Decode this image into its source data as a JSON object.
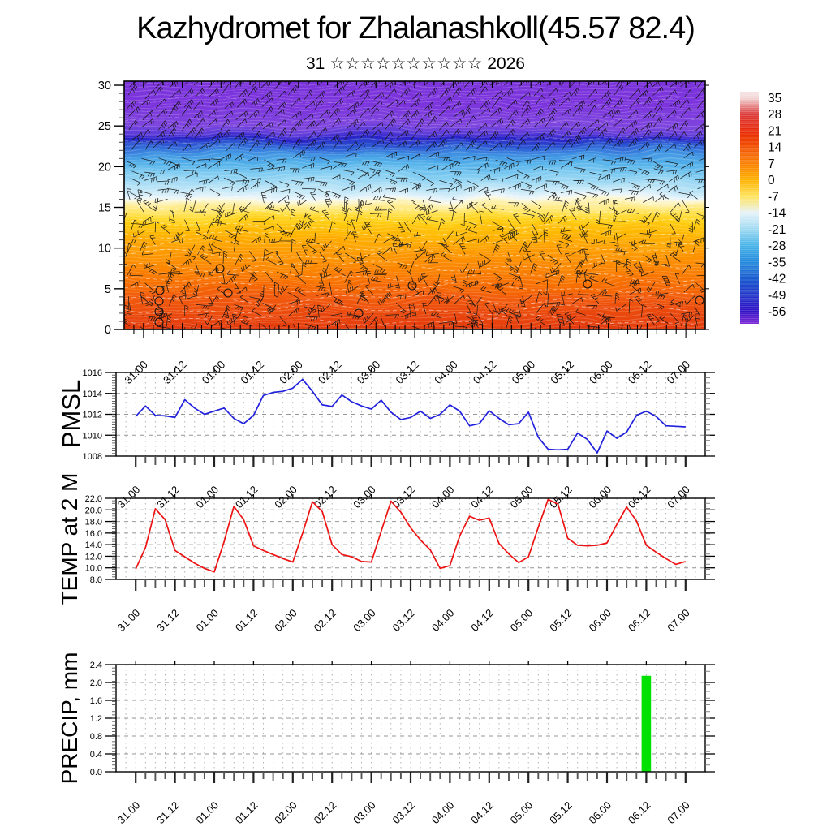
{
  "title": "Kazhydromet for Zhalanashkoll(45.57 82.4)",
  "subtitle": {
    "day": "31",
    "stars": "☆☆☆☆☆☆☆☆☆☆",
    "year": "2026",
    "text": "31 ☆☆☆☆☆☆☆☆☆☆ 2026"
  },
  "time_axis": {
    "tick_labels": [
      "31.00",
      "31.12",
      "01.00",
      "01.12",
      "02.00",
      "02.12",
      "03.00",
      "03.12",
      "04.00",
      "04.12",
      "05.00",
      "05.12",
      "06.00",
      "06.12",
      "07.00"
    ],
    "step_hours": 3,
    "major_step_hours": 12
  },
  "colorbar": {
    "tick_labels": [
      "35",
      "28",
      "21",
      "14",
      "7",
      "0",
      "-7",
      "-14",
      "-21",
      "-28",
      "-35",
      "-42",
      "-49",
      "-56"
    ],
    "colors": [
      "#f3d9d9",
      "#dc3c3c",
      "#e82806",
      "#f25203",
      "#fa7e00",
      "#ffb200",
      "#ffe358",
      "#e8f3f9",
      "#9ed9f2",
      "#49b4e8",
      "#2188dc",
      "#1b5cd0",
      "#1f34c8",
      "#3313c6"
    ],
    "top_color": "#f6e3e3",
    "bottom_color": "#7e2ad6"
  },
  "chart_data": [
    {
      "type": "heatmap",
      "name": "wind-temperature-height-section",
      "ylim": [
        0,
        30.5
      ],
      "yticks": [
        0,
        5,
        10,
        15,
        20,
        25,
        30
      ],
      "ytick_labels": [
        "0",
        "5",
        "10",
        "15",
        "20",
        "25",
        "30"
      ],
      "overlay": "wind barbs",
      "gradient_stops": [
        [
          0.0,
          "#7b31da"
        ],
        [
          0.16,
          "#7c36dc"
        ],
        [
          0.225,
          "#7e46de"
        ],
        [
          0.252,
          "#5b3bd8"
        ],
        [
          0.268,
          "#2a22c8"
        ],
        [
          0.283,
          "#2945cd"
        ],
        [
          0.3,
          "#3166d7"
        ],
        [
          0.325,
          "#3f91e2"
        ],
        [
          0.355,
          "#54b2ea"
        ],
        [
          0.39,
          "#7fcbf1"
        ],
        [
          0.425,
          "#a8ddf5"
        ],
        [
          0.452,
          "#cdebf8"
        ],
        [
          0.468,
          "#e8f4fb"
        ],
        [
          0.479,
          "#f9f8e4"
        ],
        [
          0.492,
          "#fdf2b4"
        ],
        [
          0.512,
          "#ffe97e"
        ],
        [
          0.535,
          "#ffdd3a"
        ],
        [
          0.565,
          "#ffca0b"
        ],
        [
          0.605,
          "#ffb303"
        ],
        [
          0.655,
          "#fe9d02"
        ],
        [
          0.705,
          "#fb8903"
        ],
        [
          0.765,
          "#f87104"
        ],
        [
          0.825,
          "#f15908"
        ],
        [
          0.885,
          "#e9460c"
        ],
        [
          0.945,
          "#e1370c"
        ],
        [
          1.0,
          "#d92d08"
        ]
      ]
    },
    {
      "type": "line",
      "series_name": "PMSL",
      "color": "#2121dd",
      "ylim": [
        1008,
        1016
      ],
      "yticks": [
        1016,
        1014,
        1012,
        1010,
        1008
      ],
      "ytick_labels": [
        "1016",
        "1014",
        "1012",
        "1010",
        "1008"
      ],
      "grid_y": [
        1010,
        1012,
        1014
      ],
      "x_step_hours": 3,
      "values": [
        1011.8,
        1012.8,
        1011.9,
        1011.85,
        1011.7,
        1013.4,
        1012.6,
        1012.0,
        1012.3,
        1012.6,
        1011.6,
        1011.1,
        1011.9,
        1013.8,
        1014.1,
        1014.2,
        1014.5,
        1015.35,
        1014.2,
        1012.9,
        1012.75,
        1013.85,
        1013.2,
        1012.8,
        1012.5,
        1013.35,
        1012.2,
        1011.5,
        1011.7,
        1012.3,
        1011.6,
        1012.0,
        1012.9,
        1012.3,
        1010.9,
        1011.1,
        1012.35,
        1011.6,
        1011.0,
        1011.1,
        1012.2,
        1009.8,
        1008.65,
        1008.6,
        1008.65,
        1010.2,
        1009.6,
        1008.3,
        1010.4,
        1009.7,
        1010.3,
        1011.9,
        1012.3,
        1011.8,
        1010.9,
        1010.85,
        1010.8
      ]
    },
    {
      "type": "line",
      "series_name": "TEMP at 2 M",
      "color": "#ee1111",
      "ylim": [
        8,
        22
      ],
      "yticks": [
        22,
        20,
        18,
        16,
        14,
        12,
        10,
        8
      ],
      "ytick_labels": [
        "22.0",
        "20.0",
        "18.0",
        "16.0",
        "14.0",
        "12.0",
        "10.0",
        "8.0"
      ],
      "grid_y": [
        10,
        12,
        14,
        16,
        18,
        20
      ],
      "x_step_hours": 3,
      "values": [
        9.8,
        13.5,
        20.2,
        18.3,
        13.0,
        11.9,
        10.8,
        9.9,
        9.3,
        14.5,
        20.6,
        18.3,
        13.8,
        13.0,
        12.3,
        11.6,
        11.0,
        16.0,
        21.4,
        19.7,
        14.0,
        12.3,
        11.9,
        11.1,
        11.0,
        16.3,
        21.5,
        19.6,
        16.9,
        14.8,
        13.1,
        9.9,
        10.4,
        15.5,
        18.9,
        18.2,
        18.6,
        14.2,
        12.4,
        10.9,
        11.9,
        17.0,
        21.8,
        21.0,
        15.1,
        13.9,
        13.8,
        13.9,
        14.3,
        17.5,
        20.5,
        18.1,
        13.9,
        12.7,
        11.6,
        10.6,
        11.1
      ]
    },
    {
      "type": "bar",
      "series_name": "PRECIP, mm",
      "color": "#00e100",
      "ylim": [
        0,
        2.4
      ],
      "yticks": [
        2.4,
        2.0,
        1.6,
        1.2,
        0.8,
        0.4,
        0.0
      ],
      "ytick_labels": [
        "2.4",
        "2.0",
        "1.6",
        "1.2",
        "0.8",
        "0.4",
        "0.0"
      ],
      "grid_y": [
        0.4,
        0.8,
        1.2,
        1.6,
        2.0
      ],
      "x_step_hours": 3,
      "values": [
        0,
        0,
        0,
        0,
        0,
        0,
        0,
        0,
        0,
        0,
        0,
        0,
        0,
        0,
        0,
        0,
        0,
        0,
        0,
        0,
        0,
        0,
        0,
        0,
        0,
        0,
        0,
        0,
        0,
        0,
        0,
        0,
        0,
        0,
        0,
        0,
        0,
        0,
        0,
        0,
        0,
        0,
        0,
        0,
        0,
        0,
        0,
        0,
        0,
        0,
        0,
        0,
        2.15,
        0,
        0,
        0,
        0
      ]
    }
  ]
}
